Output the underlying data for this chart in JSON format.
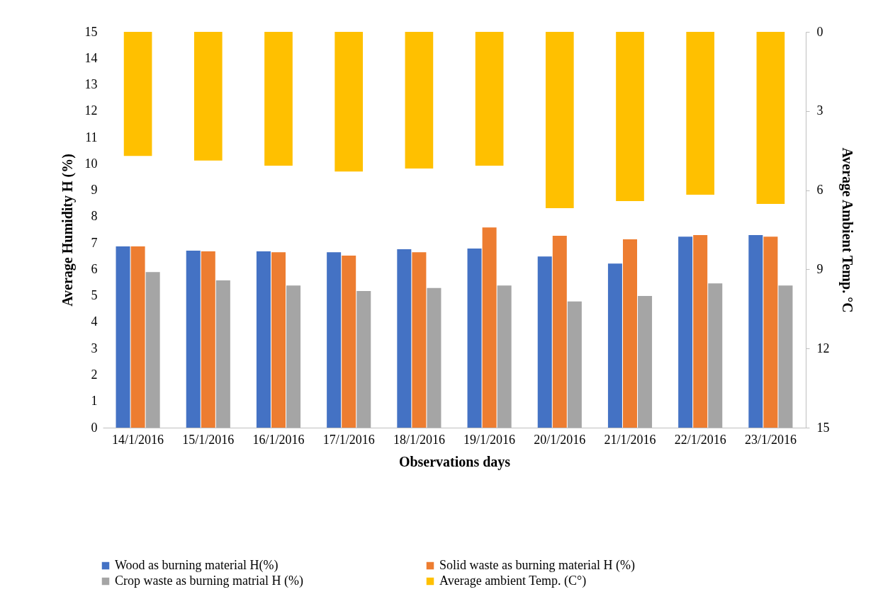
{
  "chart_data": {
    "type": "bar",
    "xlabel": "Observations days",
    "ylabel": "Average Humidity  H (%)",
    "y2label": "Average Ambient Temp. °C",
    "categories": [
      "14/1/2016",
      "15/1/2016",
      "16/1/2016",
      "17/1/2016",
      "18/1/2016",
      "19/1/2016",
      "20/1/2016",
      "21/1/2016",
      "22/1/2016",
      "23/1/2016"
    ],
    "series": [
      {
        "name": "Wood as burning material H(%)",
        "color": "#4472c4",
        "values": [
          6.87,
          6.71,
          6.68,
          6.65,
          6.76,
          6.79,
          6.49,
          6.22,
          7.24,
          7.3
        ]
      },
      {
        "name": "Solid waste as burning material H (%)",
        "color": "#ed7d31",
        "values": [
          6.87,
          6.68,
          6.65,
          6.52,
          6.65,
          7.59,
          7.27,
          7.14,
          7.3,
          7.24
        ]
      },
      {
        "name": "Crop waste as burning matrial H (%)",
        "color": "#a5a5a5",
        "values": [
          5.9,
          5.58,
          5.39,
          5.18,
          5.29,
          5.39,
          4.78,
          4.99,
          5.47,
          5.39
        ]
      },
      {
        "name": "Average ambient Temp.  (C°)",
        "color": "#ffc000",
        "axis": "y2",
        "values": [
          4.7,
          4.88,
          5.07,
          5.29,
          5.18,
          5.07,
          6.68,
          6.41,
          6.17,
          6.52
        ]
      }
    ],
    "ylim": [
      0,
      15
    ],
    "yticks": [
      0,
      1,
      2,
      3,
      4,
      5,
      6,
      7,
      8,
      9,
      10,
      11,
      12,
      13,
      14,
      15
    ],
    "y2lim": [
      15,
      0
    ],
    "y2ticks": [
      0,
      3,
      6,
      9,
      12,
      15
    ],
    "legend": "bottom",
    "grid": false
  }
}
